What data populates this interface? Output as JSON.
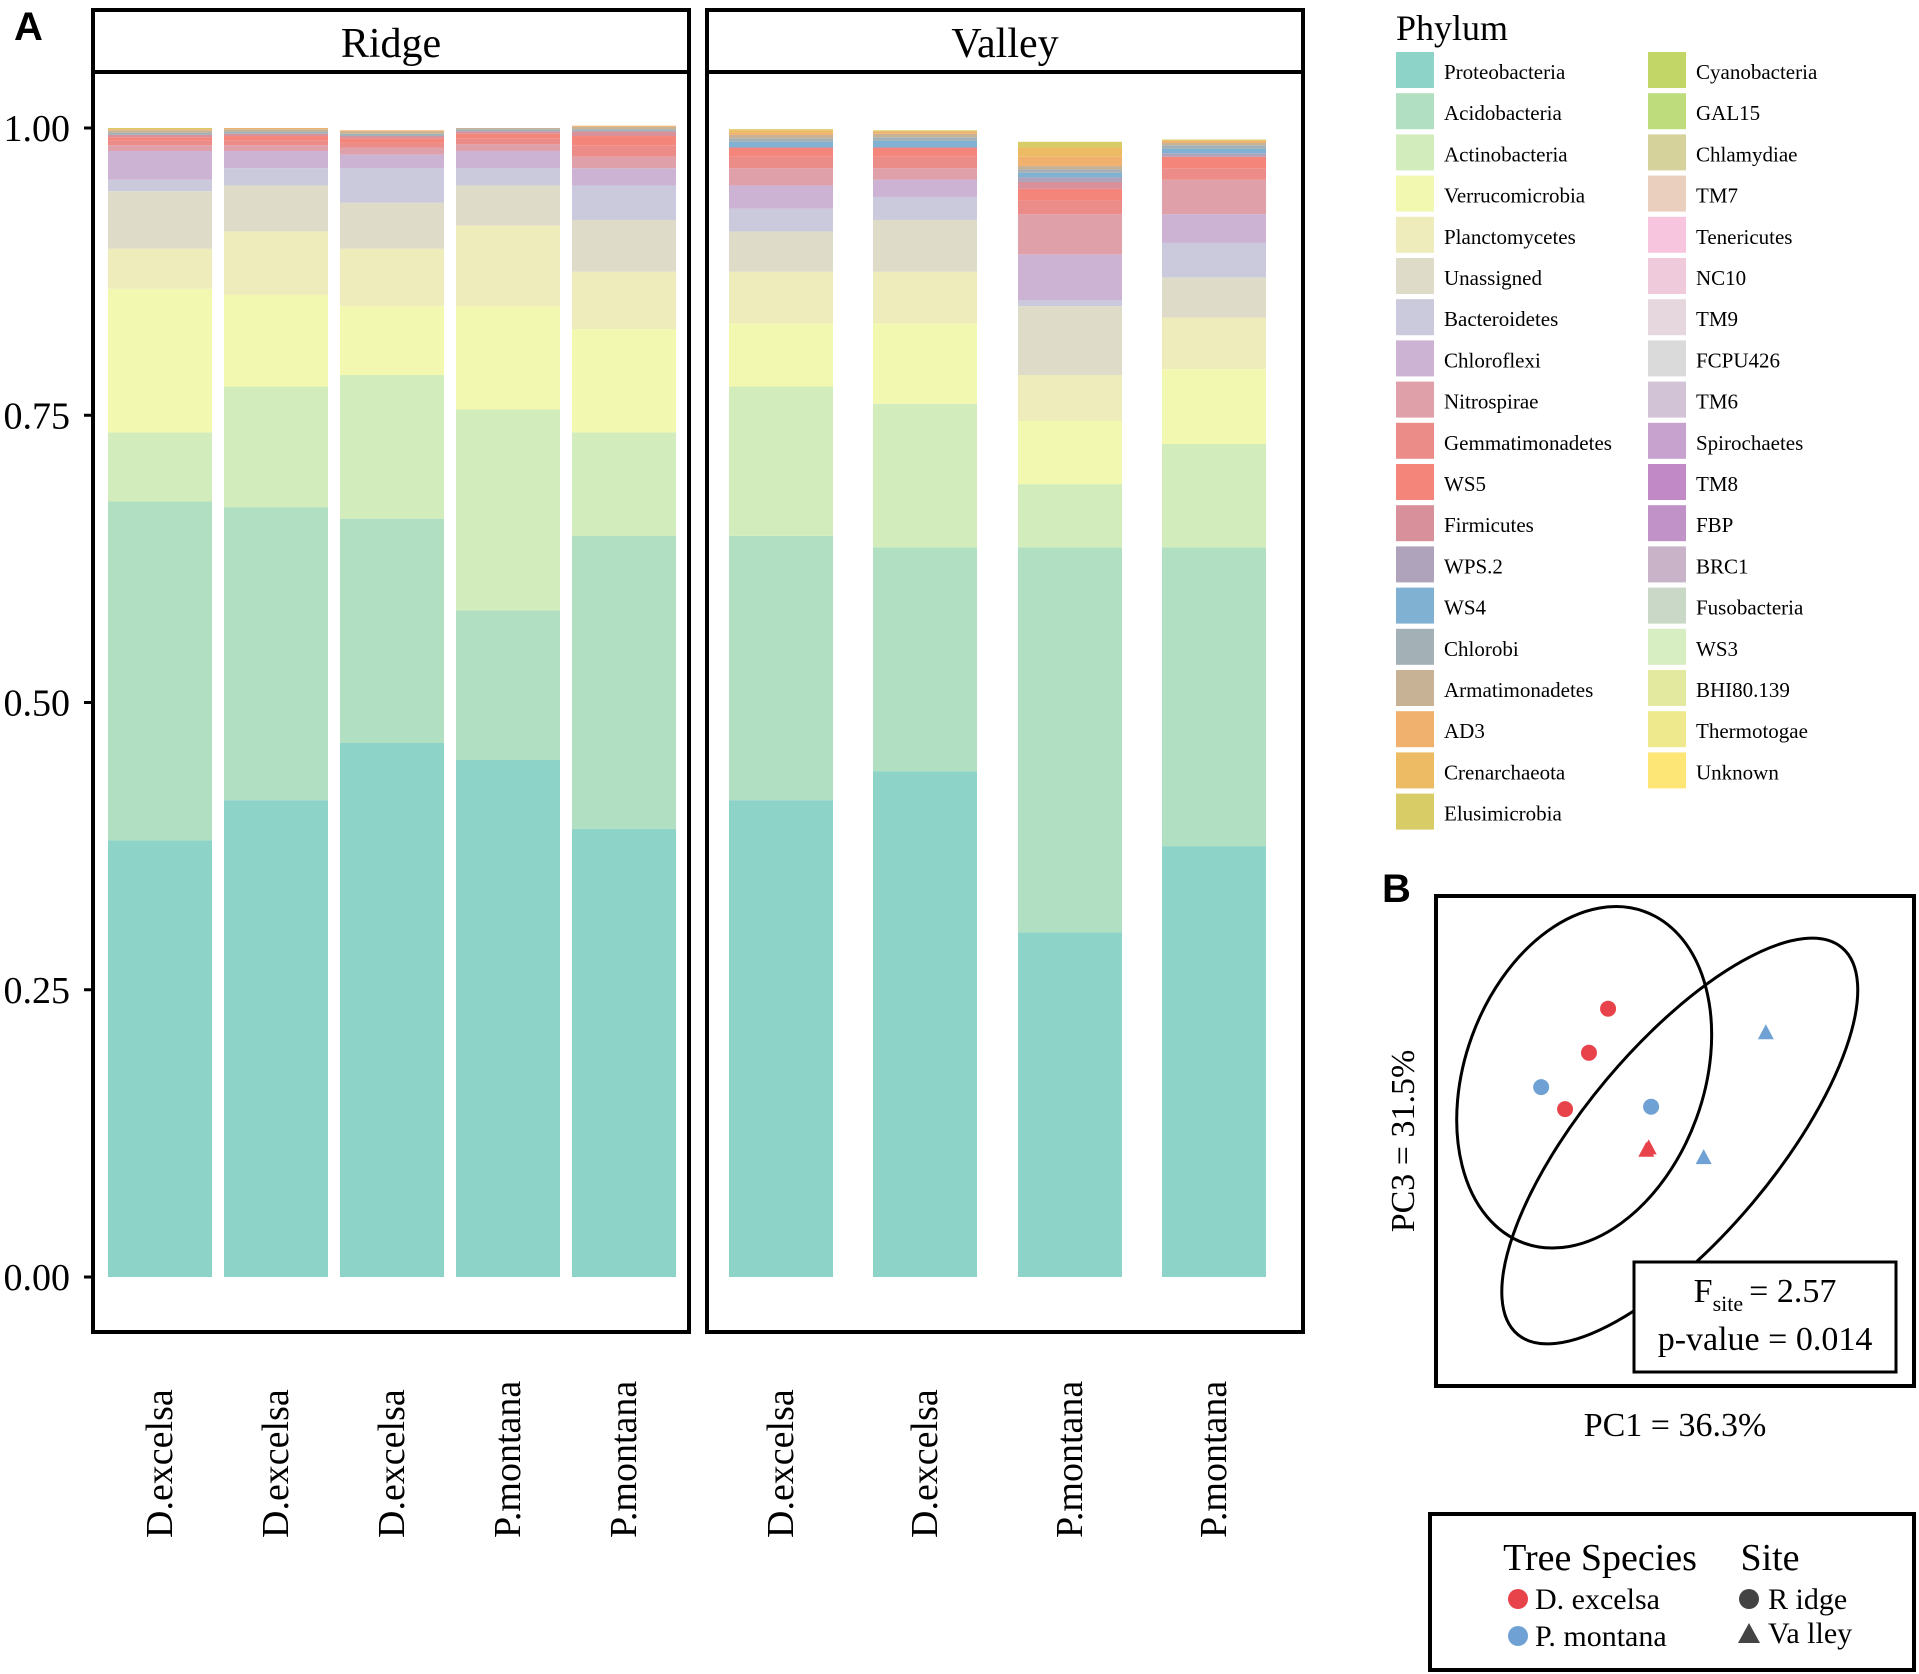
{
  "chart_data": [
    {
      "panel_label": "A",
      "type": "bar",
      "stacked": true,
      "facets": [
        "Ridge",
        "Valley"
      ],
      "samples": [
        {
          "facet": "Ridge",
          "label": "D.excelsa",
          "phylum_proportions": {
            "Proteobacteria": 0.38,
            "Acidobacteria": 0.295,
            "Actinobacteria": 0.06,
            "Verrucomicrobia": 0.125,
            "Planctomycetes": 0.035,
            "Unassigned": 0.05,
            "Bacteroidetes": 0.01,
            "Chloroflexi": 0.025,
            "Nitrospirae": 0.005,
            "Gemmatimonadetes": 0.004,
            "WS5": 0.003,
            "Firmicutes": 0.002,
            "Chlorobi": 0.002,
            "Armatimonadetes": 0.002,
            "AD3": 0.001,
            "Elusimicrobia": 0.001
          }
        },
        {
          "facet": "Ridge",
          "label": "D.excelsa",
          "phylum_proportions": {
            "Proteobacteria": 0.415,
            "Acidobacteria": 0.255,
            "Actinobacteria": 0.105,
            "Verrucomicrobia": 0.08,
            "Planctomycetes": 0.055,
            "Unassigned": 0.04,
            "Bacteroidetes": 0.015,
            "Chloroflexi": 0.015,
            "Nitrospirae": 0.005,
            "Gemmatimonadetes": 0.004,
            "WS5": 0.004,
            "Firmicutes": 0.002,
            "Chlorobi": 0.002,
            "Armatimonadetes": 0.002,
            "AD3": 0.001
          }
        },
        {
          "facet": "Ridge",
          "label": "D.excelsa",
          "phylum_proportions": {
            "Proteobacteria": 0.465,
            "Acidobacteria": 0.195,
            "Actinobacteria": 0.125,
            "Verrucomicrobia": 0.06,
            "Planctomycetes": 0.05,
            "Unassigned": 0.04,
            "Bacteroidetes": 0.03,
            "Chloroflexi": 0.012,
            "Nitrospirae": 0.006,
            "Gemmatimonadetes": 0.004,
            "WS5": 0.004,
            "Firmicutes": 0.002,
            "Chlorobi": 0.002,
            "Armatimonadetes": 0.002,
            "AD3": 0.001
          }
        },
        {
          "facet": "Ridge",
          "label": "P.montana",
          "phylum_proportions": {
            "Proteobacteria": 0.45,
            "Acidobacteria": 0.13,
            "Actinobacteria": 0.175,
            "Verrucomicrobia": 0.09,
            "Planctomycetes": 0.07,
            "Unassigned": 0.035,
            "Bacteroidetes": 0.015,
            "Chloroflexi": 0.015,
            "Nitrospirae": 0.006,
            "Gemmatimonadetes": 0.005,
            "WS5": 0.004,
            "Firmicutes": 0.002,
            "Chlorobi": 0.002,
            "Armatimonadetes": 0.001
          }
        },
        {
          "facet": "Ridge",
          "label": "P.montana",
          "phylum_proportions": {
            "Proteobacteria": 0.39,
            "Acidobacteria": 0.255,
            "Actinobacteria": 0.09,
            "Verrucomicrobia": 0.09,
            "Planctomycetes": 0.05,
            "Unassigned": 0.045,
            "Bacteroidetes": 0.03,
            "Chloroflexi": 0.015,
            "Nitrospirae": 0.01,
            "Gemmatimonadetes": 0.01,
            "WS5": 0.008,
            "Firmicutes": 0.004,
            "Chlorobi": 0.002,
            "Armatimonadetes": 0.002,
            "AD3": 0.001
          }
        },
        {
          "facet": "Valley",
          "label": "D.excelsa",
          "phylum_proportions": {
            "Proteobacteria": 0.415,
            "Acidobacteria": 0.23,
            "Actinobacteria": 0.13,
            "Verrucomicrobia": 0.055,
            "Planctomycetes": 0.045,
            "Unassigned": 0.035,
            "Bacteroidetes": 0.02,
            "Chloroflexi": 0.02,
            "Nitrospirae": 0.015,
            "Gemmatimonadetes": 0.01,
            "WS5": 0.008,
            "WS4": 0.005,
            "Chlorobi": 0.003,
            "Armatimonadetes": 0.003,
            "AD3": 0.002,
            "Crenarchaeota": 0.002,
            "Elusimicrobia": 0.001
          }
        },
        {
          "facet": "Valley",
          "label": "D.excelsa",
          "phylum_proportions": {
            "Proteobacteria": 0.44,
            "Acidobacteria": 0.195,
            "Actinobacteria": 0.125,
            "Verrucomicrobia": 0.07,
            "Planctomycetes": 0.045,
            "Unassigned": 0.045,
            "Bacteroidetes": 0.02,
            "Chloroflexi": 0.015,
            "Nitrospirae": 0.01,
            "Gemmatimonadetes": 0.01,
            "WS5": 0.008,
            "WS4": 0.006,
            "Chlorobi": 0.003,
            "Armatimonadetes": 0.003,
            "AD3": 0.002,
            "Elusimicrobia": 0.001
          }
        },
        {
          "facet": "Valley",
          "label": "P.montana",
          "phylum_proportions": {
            "Proteobacteria": 0.3,
            "Acidobacteria": 0.335,
            "Actinobacteria": 0.055,
            "Verrucomicrobia": 0.055,
            "Planctomycetes": 0.04,
            "Unassigned": 0.06,
            "Bacteroidetes": 0.005,
            "Chloroflexi": 0.04,
            "Nitrospirae": 0.035,
            "Gemmatimonadetes": 0.012,
            "WS5": 0.01,
            "Firmicutes": 0.006,
            "WPS.2": 0.004,
            "WS4": 0.004,
            "Chlorobi": 0.003,
            "Armatimonadetes": 0.003,
            "AD3": 0.008,
            "Crenarchaeota": 0.008,
            "Elusimicrobia": 0.005
          }
        },
        {
          "facet": "Valley",
          "label": "P.montana",
          "phylum_proportions": {
            "Proteobacteria": 0.375,
            "Acidobacteria": 0.26,
            "Actinobacteria": 0.09,
            "Verrucomicrobia": 0.065,
            "Planctomycetes": 0.045,
            "Unassigned": 0.035,
            "Bacteroidetes": 0.03,
            "Chloroflexi": 0.025,
            "Nitrospirae": 0.03,
            "Gemmatimonadetes": 0.01,
            "WS5": 0.01,
            "WPS.2": 0.003,
            "WS4": 0.004,
            "Chlorobi": 0.003,
            "Armatimonadetes": 0.002,
            "AD3": 0.002,
            "Elusimicrobia": 0.001
          }
        }
      ],
      "yticks": [
        "0.00",
        "0.25",
        "0.50",
        "0.75",
        "1.00"
      ],
      "ylim": [
        0,
        1
      ],
      "xlabel": "",
      "ylabel": "",
      "legend": {
        "title": "Phylum",
        "placement": "right",
        "entries": [
          {
            "name": "Proteobacteria",
            "color": "#8dd3c7"
          },
          {
            "name": "Acidobacteria",
            "color": "#b0dfc1"
          },
          {
            "name": "Actinobacteria",
            "color": "#d3ecbb"
          },
          {
            "name": "Verrucomicrobia",
            "color": "#f3f8b0"
          },
          {
            "name": "Planctomycetes",
            "color": "#efecbb"
          },
          {
            "name": "Unassigned",
            "color": "#dedbc9"
          },
          {
            "name": "Bacteroidetes",
            "color": "#cbc9dc"
          },
          {
            "name": "Chloroflexi",
            "color": "#ccb2d3"
          },
          {
            "name": "Nitrospirae",
            "color": "#dfa0aa"
          },
          {
            "name": "Gemmatimonadetes",
            "color": "#ec8c88"
          },
          {
            "name": "WS5",
            "color": "#f4857b"
          },
          {
            "name": "Firmicutes",
            "color": "#d8909a"
          },
          {
            "name": "WPS.2",
            "color": "#aea3ba"
          },
          {
            "name": "WS4",
            "color": "#80b1d3"
          },
          {
            "name": "Chlorobi",
            "color": "#a3b0b6"
          },
          {
            "name": "Armatimonadetes",
            "color": "#c7b295"
          },
          {
            "name": "AD3",
            "color": "#f0b16e"
          },
          {
            "name": "Crenarchaeota",
            "color": "#edbb64"
          },
          {
            "name": "Elusimicrobia",
            "color": "#d8cc66"
          },
          {
            "name": "Cyanobacteria",
            "color": "#c2d567"
          },
          {
            "name": "GAL15",
            "color": "#bedc7c"
          },
          {
            "name": "Chlamydiae",
            "color": "#d6d29c"
          },
          {
            "name": "TM7",
            "color": "#eacfbf"
          },
          {
            "name": "Tenericutes",
            "color": "#f8c5df"
          },
          {
            "name": "NC10",
            "color": "#efcadb"
          },
          {
            "name": "TM9",
            "color": "#e6d6dd"
          },
          {
            "name": "FCPU426",
            "color": "#dadada"
          },
          {
            "name": "TM6",
            "color": "#d3c3d6"
          },
          {
            "name": "Spirochaetes",
            "color": "#c8a2ce"
          },
          {
            "name": "TM8",
            "color": "#c189c6"
          },
          {
            "name": "FBP",
            "color": "#c192c7"
          },
          {
            "name": "BRC1",
            "color": "#c8b3c8"
          },
          {
            "name": "Fusobacteria",
            "color": "#cad8c8"
          },
          {
            "name": "WS3",
            "color": "#d7edc2"
          },
          {
            "name": "BHI80.139",
            "color": "#e3ea9f"
          },
          {
            "name": "Thermotogae",
            "color": "#efe98e"
          },
          {
            "name": "Unknown",
            "color": "#fde576"
          }
        ]
      }
    },
    {
      "panel_label": "B",
      "type": "scatter",
      "xlabel": "PC1 = 36.3%",
      "ylabel": "PC3 = 31.5%",
      "xlim": [
        -1,
        1
      ],
      "ylim": [
        -1,
        1
      ],
      "points": [
        {
          "species": "D. excelsa",
          "site": "Ridge",
          "x": -0.28,
          "y": 0.54
        },
        {
          "species": "D. excelsa",
          "site": "Ridge",
          "x": -0.36,
          "y": 0.36
        },
        {
          "species": "D. excelsa",
          "site": "Ridge",
          "x": -0.46,
          "y": 0.13
        },
        {
          "species": "P. montana",
          "site": "Ridge",
          "x": -0.56,
          "y": 0.22
        },
        {
          "species": "P. montana",
          "site": "Ridge",
          "x": -0.1,
          "y": 0.14
        },
        {
          "species": "D. excelsa",
          "site": "Valley",
          "x": -0.11,
          "y": -0.03
        },
        {
          "species": "D. excelsa",
          "site": "Valley",
          "x": -0.12,
          "y": -0.04
        },
        {
          "species": "P. montana",
          "site": "Valley",
          "x": 0.38,
          "y": 0.44
        },
        {
          "species": "P. montana",
          "site": "Valley",
          "x": 0.12,
          "y": -0.07
        }
      ],
      "ellipses": [
        {
          "group": "Ridge",
          "cx": -0.38,
          "cy": 0.26,
          "rx": 0.5,
          "ry": 0.72,
          "angle_deg": 20
        },
        {
          "group": "Valley",
          "cx": 0.02,
          "cy": 0.0,
          "rx": 0.4,
          "ry": 1.03,
          "angle_deg": 40
        }
      ],
      "stats": {
        "f_label": "F",
        "f_subscript": "site",
        "f_value": "= 2.57",
        "p_text": "p-value = 0.014"
      },
      "legend": {
        "species_title": "Tree Species",
        "site_title": "Site",
        "species": [
          {
            "name": "D. excelsa",
            "color": "#e8434b"
          },
          {
            "name": "P. montana",
            "color": "#6fa1d4"
          }
        ],
        "sites": [
          {
            "name": "R idge",
            "shape": "circle"
          },
          {
            "name": "Va lley",
            "shape": "triangle"
          }
        ]
      }
    }
  ],
  "marker_color": "#444444"
}
